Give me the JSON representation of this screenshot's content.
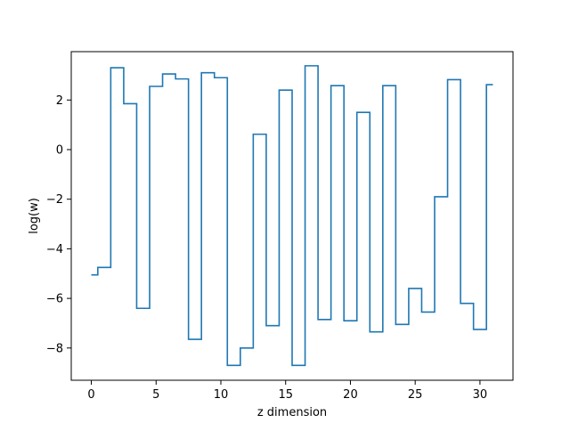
{
  "chart_data": {
    "type": "line",
    "drawstyle": "steps-mid",
    "title": "",
    "xlabel": "z dimension",
    "ylabel": "log(w)",
    "xlim": [
      -1.55,
      32.55
    ],
    "ylim": [
      -9.3,
      3.95
    ],
    "xticks": [
      0,
      5,
      10,
      15,
      20,
      25,
      30
    ],
    "yticks": [
      -8,
      -6,
      -4,
      -2,
      0,
      2
    ],
    "grid": false,
    "series": [
      {
        "color": "#1f77b4",
        "x": [
          0,
          1,
          2,
          3,
          4,
          5,
          6,
          7,
          8,
          9,
          10,
          11,
          12,
          13,
          14,
          15,
          16,
          17,
          18,
          19,
          20,
          21,
          22,
          23,
          24,
          25,
          26,
          27,
          28,
          29,
          30,
          31
        ],
        "y": [
          -5.05,
          -4.75,
          3.3,
          1.85,
          -6.4,
          2.55,
          3.05,
          2.85,
          -7.65,
          3.1,
          2.9,
          -8.7,
          -8.0,
          0.62,
          -7.1,
          2.4,
          -8.7,
          3.38,
          -6.85,
          2.58,
          -6.9,
          1.5,
          -7.35,
          2.58,
          -7.05,
          -5.6,
          -6.55,
          -1.9,
          2.82,
          -6.2,
          -7.25,
          2.62
        ]
      }
    ]
  }
}
